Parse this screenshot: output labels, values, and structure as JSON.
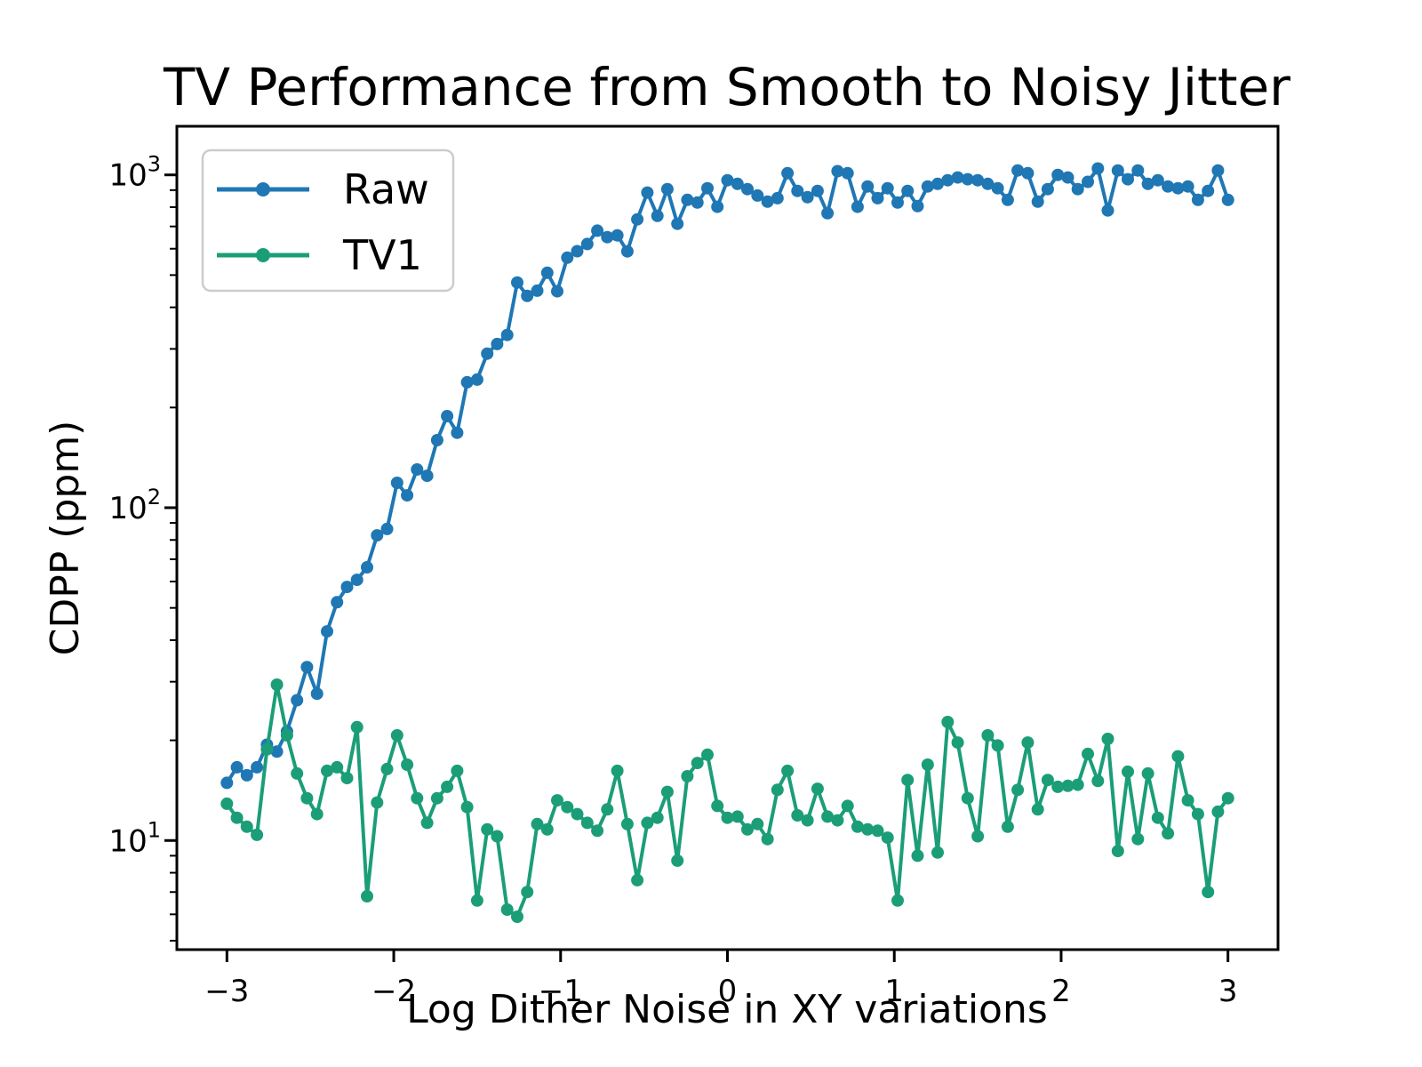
{
  "chart_data": {
    "type": "line",
    "title": "TV Performance from Smooth to Noisy Jitter",
    "xlabel": "Log Dither Noise in XY variations",
    "ylabel": "CDPP (ppm)",
    "y_scale": "log",
    "xlim": [
      -3.3,
      3.3
    ],
    "ylim": [
      4.7,
      1400
    ],
    "x_tick_values": [
      -3,
      -2,
      -1,
      0,
      1,
      2,
      3
    ],
    "x_tick_labels": [
      "−3",
      "−2",
      "−1",
      "0",
      "1",
      "2",
      "3"
    ],
    "y_tick_values": [
      10,
      100,
      1000
    ],
    "legend_position": "upper left",
    "x": [
      -3,
      -2.94,
      -2.88,
      -2.82,
      -2.76,
      -2.7,
      -2.64,
      -2.58,
      -2.52,
      -2.46,
      -2.4,
      -2.34,
      -2.28,
      -2.22,
      -2.16,
      -2.1,
      -2.04,
      -1.98,
      -1.92,
      -1.86,
      -1.8,
      -1.74,
      -1.68,
      -1.62,
      -1.56,
      -1.5,
      -1.44,
      -1.38,
      -1.32,
      -1.26,
      -1.2,
      -1.14,
      -1.08,
      -1.02,
      -0.96,
      -0.9,
      -0.84,
      -0.78,
      -0.72,
      -0.66,
      -0.6,
      -0.54,
      -0.48,
      -0.42,
      -0.36,
      -0.3,
      -0.24,
      -0.18,
      -0.12,
      -0.06,
      0,
      0.06,
      0.12,
      0.18,
      0.24,
      0.3,
      0.36,
      0.42,
      0.48,
      0.54,
      0.6,
      0.66,
      0.72,
      0.78,
      0.84,
      0.9,
      0.96,
      1.02,
      1.08,
      1.14,
      1.2,
      1.26,
      1.32,
      1.38,
      1.44,
      1.5,
      1.56,
      1.62,
      1.68,
      1.74,
      1.8,
      1.86,
      1.92,
      1.98,
      2.04,
      2.1,
      2.16,
      2.22,
      2.28,
      2.34,
      2.4,
      2.46,
      2.52,
      2.58,
      2.64,
      2.7,
      2.76,
      2.82,
      2.88,
      2.94,
      3
    ],
    "series": [
      {
        "name": "Raw",
        "color": "#1f77b4",
        "values": [
          14.9,
          16.6,
          15.7,
          16.6,
          19.4,
          18.5,
          21.3,
          26.4,
          33.2,
          27.6,
          42.5,
          52,
          57.8,
          60.7,
          66.2,
          82.6,
          86.3,
          118.8,
          108.9,
          130.3,
          124.7,
          159.6,
          188.4,
          167.9,
          238.2,
          242.7,
          290.4,
          310.4,
          330.4,
          475,
          433,
          449,
          508,
          447,
          564,
          590,
          620,
          680,
          650,
          658,
          589,
          735,
          885,
          753,
          906,
          713,
          841,
          826,
          912,
          802,
          964,
          940,
          906,
          867,
          831,
          851,
          1012,
          895,
          857,
          895,
          767,
          1026,
          1012,
          802,
          923,
          851,
          912,
          826,
          895,
          806,
          923,
          940,
          964,
          982,
          970,
          964,
          940,
          912,
          841,
          1031,
          1012,
          831,
          906,
          1000,
          982,
          906,
          953,
          1045,
          782,
          1031,
          970,
          1031,
          940,
          964,
          923,
          912,
          923,
          841,
          895,
          1031,
          841
        ]
      },
      {
        "name": "TV1",
        "color": "#1b9e77",
        "values": [
          12.9,
          11.7,
          11,
          10.4,
          18.8,
          29.4,
          20.7,
          15.9,
          13.4,
          12,
          16.2,
          16.6,
          15.4,
          21.9,
          6.8,
          13,
          16.4,
          20.7,
          16.9,
          13.4,
          11.3,
          13.4,
          14.5,
          16.2,
          12.6,
          6.6,
          10.8,
          10.3,
          6.2,
          5.9,
          7,
          11.2,
          10.8,
          13.2,
          12.6,
          12,
          11.3,
          10.7,
          12.4,
          16.2,
          11.2,
          7.6,
          11.3,
          11.7,
          14,
          8.7,
          15.6,
          17.1,
          18.1,
          12.7,
          11.7,
          11.8,
          10.8,
          11.2,
          10.1,
          14.2,
          16.2,
          11.9,
          11.5,
          14.3,
          11.8,
          11.5,
          12.7,
          11,
          10.8,
          10.7,
          10.2,
          6.6,
          15.2,
          9,
          16.9,
          9.2,
          22.7,
          19.7,
          13.4,
          10.3,
          20.7,
          19.3,
          11,
          14.2,
          19.7,
          12.4,
          15.2,
          14.5,
          14.6,
          14.7,
          18.2,
          15.1,
          20.2,
          9.3,
          16.1,
          10.1,
          15.9,
          11.7,
          10.5,
          17.9,
          13.2,
          12,
          7,
          12.2,
          13.4
        ]
      }
    ]
  }
}
